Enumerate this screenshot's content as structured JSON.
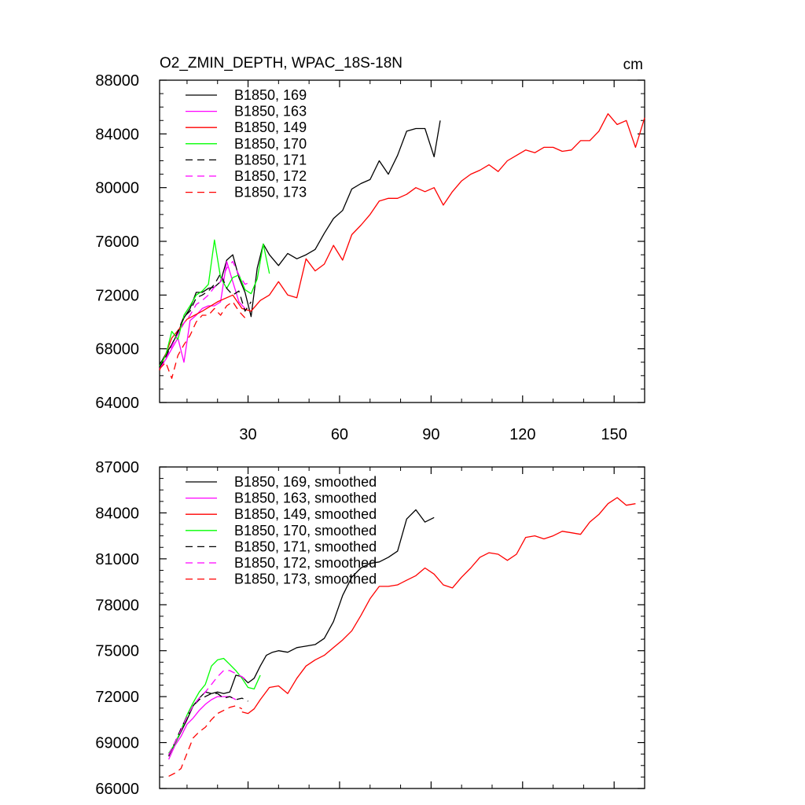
{
  "chart_data": [
    {
      "type": "line",
      "title": "O2_ZMIN_DEPTH, WPAC_18S-18N",
      "units": "cm",
      "xlim": [
        1,
        160
      ],
      "ylim": [
        64000,
        88000
      ],
      "x_ticks": [
        30,
        60,
        90,
        120,
        150
      ],
      "y_ticks": [
        64000,
        68000,
        72000,
        76000,
        80000,
        84000,
        88000
      ],
      "grid": false,
      "legend_position": "top-left",
      "series": [
        {
          "name": "B1850, 169",
          "color": "#000000",
          "dash": "solid",
          "x": [
            1,
            3,
            5,
            7,
            9,
            11,
            13,
            15,
            17,
            19,
            21,
            23,
            25,
            27,
            29,
            31,
            33,
            35,
            37,
            40,
            43,
            46,
            49,
            52,
            55,
            58,
            61,
            64,
            67,
            70,
            73,
            76,
            79,
            82,
            85,
            88,
            91,
            93
          ],
          "y": [
            66800,
            67600,
            68300,
            69200,
            70300,
            71000,
            72200,
            72200,
            72500,
            72600,
            73000,
            74600,
            75000,
            73300,
            72200,
            70400,
            74000,
            75800,
            75000,
            74200,
            75100,
            74700,
            75000,
            75400,
            76600,
            77700,
            78300,
            79900,
            80300,
            80600,
            82000,
            81000,
            82400,
            84200,
            84400,
            84400,
            82300,
            85000
          ]
        },
        {
          "name": "B1850, 163",
          "color": "#ff00ff",
          "dash": "solid",
          "x": [
            1,
            3,
            5,
            7,
            9,
            11,
            13,
            15,
            17,
            19,
            21,
            23,
            25,
            27,
            29
          ],
          "y": [
            66500,
            67200,
            68000,
            68800,
            67000,
            70100,
            70500,
            71000,
            71200,
            71200,
            71500,
            74500,
            73000,
            71500,
            71000
          ]
        },
        {
          "name": "B1850, 149",
          "color": "#ff0000",
          "dash": "solid",
          "x": [
            1,
            5,
            10,
            15,
            20,
            25,
            28,
            31,
            34,
            37,
            40,
            43,
            46,
            49,
            52,
            55,
            58,
            61,
            64,
            67,
            70,
            73,
            76,
            79,
            82,
            85,
            88,
            91,
            94,
            97,
            100,
            103,
            106,
            109,
            112,
            115,
            118,
            121,
            124,
            127,
            130,
            133,
            136,
            139,
            142,
            145,
            148,
            151,
            154,
            157,
            160
          ],
          "y": [
            66400,
            68800,
            70200,
            70800,
            71500,
            72000,
            71000,
            70800,
            71600,
            72000,
            73000,
            72000,
            71800,
            74700,
            73800,
            74300,
            75700,
            74600,
            76500,
            77200,
            78000,
            79000,
            79200,
            79200,
            79500,
            80000,
            79700,
            80000,
            78700,
            79700,
            80500,
            81000,
            81300,
            81700,
            81200,
            82000,
            82400,
            82800,
            82600,
            83000,
            83000,
            82700,
            82800,
            83500,
            83500,
            84200,
            85500,
            84700,
            85000,
            83000,
            85200
          ]
        },
        {
          "name": "B1850, 170",
          "color": "#00ff00",
          "dash": "solid",
          "x": [
            1,
            3,
            5,
            7,
            9,
            11,
            13,
            15,
            17,
            19,
            21,
            23,
            25,
            27,
            29,
            31,
            33,
            35,
            37
          ],
          "y": [
            66700,
            67500,
            69300,
            68700,
            70500,
            71200,
            72000,
            72300,
            72800,
            76100,
            73300,
            72500,
            73300,
            73500,
            72400,
            72100,
            73200,
            75800,
            73600
          ]
        },
        {
          "name": "B1850, 171",
          "color": "#000000",
          "dash": "dashed",
          "x": [
            1,
            3,
            5,
            7,
            9,
            11,
            13,
            15,
            17,
            19,
            21,
            23,
            25,
            27,
            29,
            31
          ],
          "y": [
            66600,
            67400,
            68300,
            69300,
            70400,
            70800,
            71800,
            72000,
            72300,
            72800,
            73600,
            72500,
            72000,
            72300,
            70800,
            71500
          ]
        },
        {
          "name": "B1850, 172",
          "color": "#ff00ff",
          "dash": "dashed",
          "x": [
            1,
            3,
            5,
            7,
            9,
            11,
            13,
            15,
            17,
            19,
            21,
            23,
            25,
            27,
            29,
            31
          ],
          "y": [
            66500,
            67200,
            68200,
            69100,
            69900,
            70500,
            71300,
            71600,
            72000,
            72600,
            73000,
            74000,
            74500,
            73500,
            72800,
            73000
          ]
        },
        {
          "name": "B1850, 173",
          "color": "#ff0000",
          "dash": "dashed",
          "x": [
            1,
            3,
            5,
            7,
            9,
            11,
            13,
            15,
            17,
            19,
            21,
            23,
            25,
            27,
            29
          ],
          "y": [
            66500,
            67000,
            65800,
            67500,
            68300,
            69000,
            70000,
            70500,
            70500,
            71000,
            70500,
            71200,
            71500,
            70800,
            70300
          ]
        }
      ]
    },
    {
      "type": "line",
      "xlim": [
        1,
        160
      ],
      "ylim": [
        66000,
        87000
      ],
      "x_ticks": [
        30,
        60,
        90,
        120,
        150
      ],
      "y_ticks": [
        66000,
        69000,
        72000,
        75000,
        78000,
        81000,
        84000,
        87000
      ],
      "grid": false,
      "legend_position": "top-left",
      "series": [
        {
          "name": "B1850, 169, smoothed",
          "color": "#000000",
          "dash": "solid",
          "x": [
            4,
            6,
            8,
            10,
            12,
            14,
            16,
            18,
            20,
            22,
            24,
            26,
            28,
            30,
            32,
            34,
            36,
            38,
            40,
            43,
            46,
            49,
            52,
            55,
            58,
            61,
            64,
            67,
            70,
            73,
            76,
            79,
            82,
            85,
            88,
            91
          ],
          "y": [
            68200,
            68900,
            69700,
            70500,
            71400,
            71900,
            72300,
            72200,
            72300,
            72200,
            72300,
            73400,
            73300,
            72900,
            73200,
            74000,
            74700,
            74900,
            75000,
            74900,
            75200,
            75300,
            75400,
            75800,
            76900,
            78600,
            79800,
            80400,
            80700,
            80800,
            81100,
            81500,
            83600,
            84200,
            83400,
            83700
          ]
        },
        {
          "name": "B1850, 163, smoothed",
          "color": "#ff00ff",
          "dash": "solid",
          "x": [
            4,
            6,
            8,
            10,
            12,
            14,
            16,
            18,
            20,
            22,
            24,
            26
          ],
          "y": [
            67900,
            68800,
            69400,
            70200,
            70600,
            71100,
            71500,
            71800,
            72000,
            72000,
            72000,
            71800
          ]
        },
        {
          "name": "B1850, 149, smoothed",
          "color": "#ff0000",
          "dash": "solid",
          "x": [
            28,
            30,
            32,
            34,
            37,
            40,
            43,
            46,
            49,
            52,
            55,
            58,
            61,
            64,
            67,
            70,
            73,
            76,
            79,
            82,
            85,
            88,
            91,
            94,
            97,
            100,
            103,
            106,
            109,
            112,
            115,
            118,
            121,
            124,
            127,
            130,
            133,
            136,
            139,
            142,
            145,
            148,
            151,
            154,
            157
          ],
          "y": [
            71000,
            70900,
            71200,
            71800,
            72600,
            72700,
            72200,
            73200,
            74000,
            74400,
            74700,
            75200,
            75700,
            76300,
            77300,
            78400,
            79200,
            79200,
            79300,
            79600,
            79900,
            80400,
            80000,
            79300,
            79100,
            79800,
            80400,
            81100,
            81400,
            81300,
            80900,
            81300,
            82400,
            82500,
            82300,
            82500,
            82800,
            82700,
            82600,
            83400,
            83900,
            84600,
            85000,
            84500,
            84600
          ]
        },
        {
          "name": "B1850, 170, smoothed",
          "color": "#00ff00",
          "dash": "solid",
          "x": [
            4,
            6,
            8,
            10,
            12,
            14,
            16,
            18,
            20,
            22,
            24,
            26,
            28,
            30,
            32,
            34
          ],
          "y": [
            68300,
            68900,
            69800,
            70800,
            71600,
            72300,
            72800,
            74000,
            74400,
            74500,
            74100,
            73700,
            73200,
            72600,
            72500,
            73400
          ]
        },
        {
          "name": "B1850, 171, smoothed",
          "color": "#000000",
          "dash": "dashed",
          "x": [
            4,
            6,
            8,
            10,
            12,
            14,
            16,
            18,
            20,
            22,
            24,
            26,
            28,
            30
          ],
          "y": [
            68100,
            69000,
            69900,
            70700,
            71400,
            71800,
            72000,
            72200,
            72200,
            71900,
            72000,
            71800,
            71900,
            71700
          ]
        },
        {
          "name": "B1850, 172, smoothed",
          "color": "#ff00ff",
          "dash": "dashed",
          "x": [
            4,
            6,
            8,
            10,
            12,
            14,
            16,
            18,
            20,
            22,
            24,
            26,
            28,
            30
          ],
          "y": [
            68200,
            69000,
            69800,
            70700,
            71400,
            71900,
            72300,
            72800,
            73300,
            73700,
            73700,
            73500,
            73300,
            73000
          ]
        },
        {
          "name": "B1850, 173, smoothed",
          "color": "#ff0000",
          "dash": "dashed",
          "x": [
            4,
            6,
            8,
            10,
            12,
            14,
            16,
            18,
            20,
            22,
            24,
            26,
            28
          ],
          "y": [
            66800,
            67000,
            67300,
            68300,
            69300,
            69700,
            70000,
            70500,
            70900,
            71100,
            71300,
            71400,
            71200
          ]
        }
      ]
    }
  ]
}
